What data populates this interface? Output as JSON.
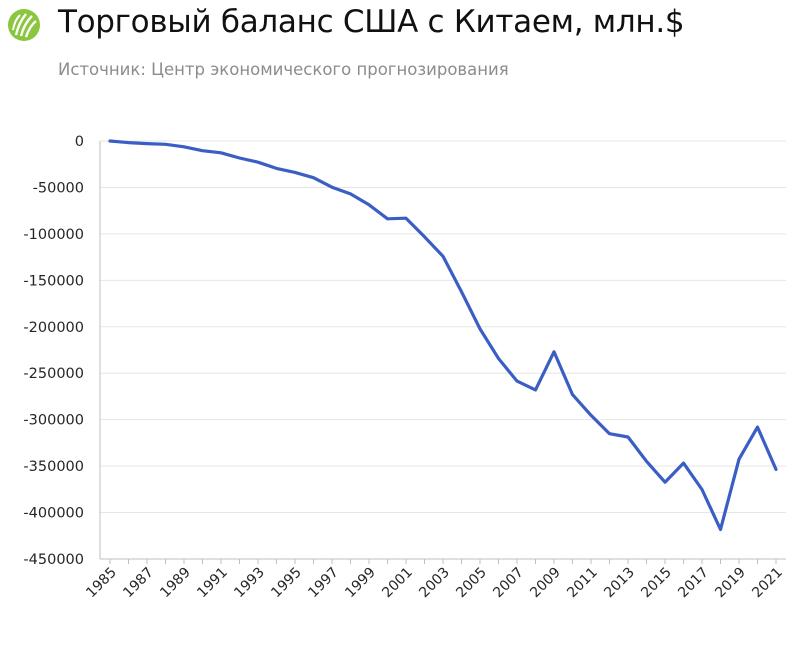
{
  "header": {
    "title": "Торговый баланс США с Китаем, млн.$",
    "subtitle": "Источник: Центр экономического прогнозирования"
  },
  "colors": {
    "line": "#3a5ec4",
    "grid": "#e6e6e6",
    "axis": "#bfbfbf",
    "logo": "#8cc63f"
  },
  "chart_data": {
    "type": "line",
    "title": "Торговый баланс США с Китаем, млн.$",
    "ylim": [
      -450000,
      0
    ],
    "y_ticks": [
      0,
      -50000,
      -100000,
      -150000,
      -200000,
      -250000,
      -300000,
      -350000,
      -400000,
      -450000
    ],
    "x_tick_labels": [
      "1985",
      "1987",
      "1989",
      "1991",
      "1993",
      "1995",
      "1997",
      "1999",
      "2001",
      "2003",
      "2005",
      "2007",
      "2009",
      "2011",
      "2013",
      "2015",
      "2017",
      "2019",
      "2021"
    ],
    "grid": "horizontal",
    "legend": "none",
    "x": [
      1985,
      1986,
      1987,
      1988,
      1989,
      1990,
      1991,
      1992,
      1993,
      1994,
      1995,
      1996,
      1997,
      1998,
      1999,
      2000,
      2001,
      2002,
      2003,
      2004,
      2005,
      2006,
      2007,
      2008,
      2009,
      2010,
      2011,
      2012,
      2013,
      2014,
      2015,
      2016,
      2017,
      2018,
      2019,
      2020,
      2021
    ],
    "y": [
      -6,
      -1700,
      -2800,
      -3500,
      -6200,
      -10400,
      -12700,
      -18300,
      -22800,
      -29500,
      -33800,
      -39500,
      -49700,
      -56900,
      -68700,
      -83800,
      -83100,
      -103100,
      -124100,
      -162300,
      -202300,
      -234100,
      -258500,
      -268000,
      -226900,
      -273000,
      -295300,
      -315100,
      -318700,
      -344800,
      -367300,
      -346800,
      -375200,
      -418200,
      -342600,
      -308000,
      -353500
    ]
  }
}
